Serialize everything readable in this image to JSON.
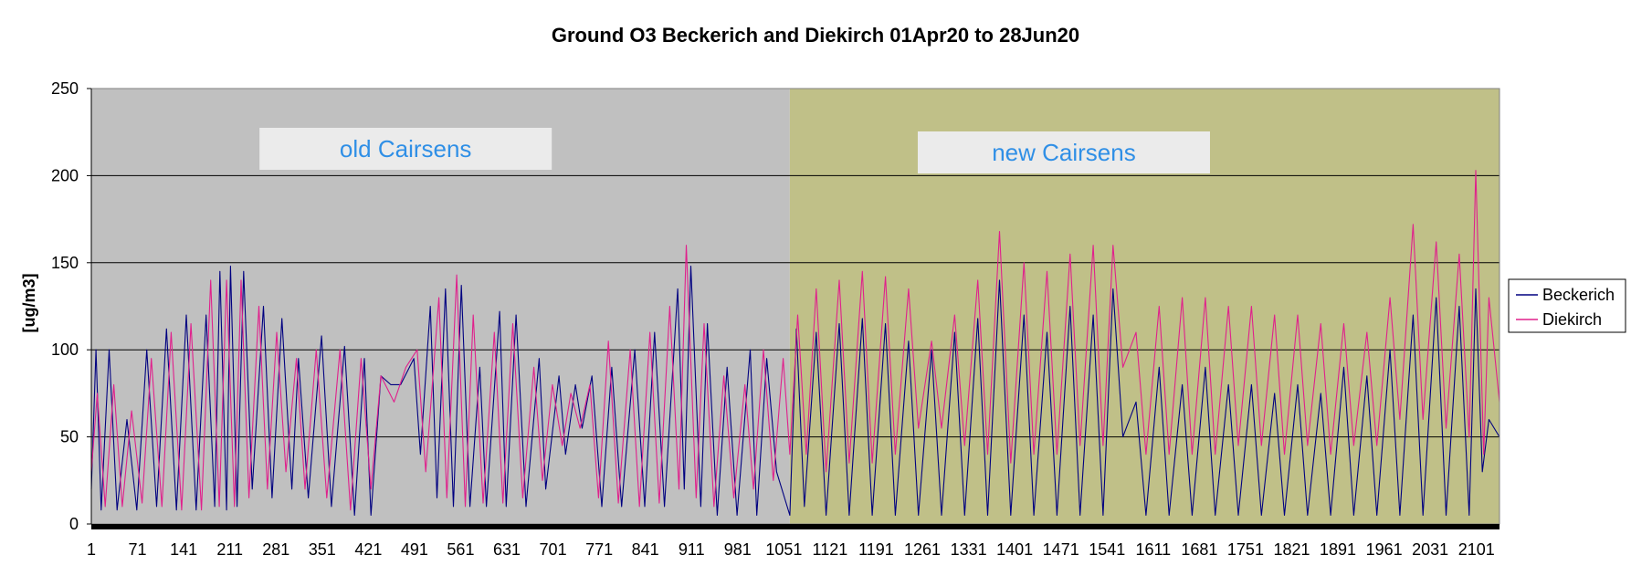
{
  "chart_data": {
    "type": "line",
    "title": "Ground O3 Beckerich and Diekirch 01Apr20 to 28Jun20",
    "ylabel": "[ug/m3]",
    "xlabel": "",
    "ylim": [
      0,
      250
    ],
    "xlim": [
      1,
      2136
    ],
    "yticks": [
      "0",
      "50",
      "100",
      "150",
      "200",
      "250"
    ],
    "xticks": [
      "1",
      "71",
      "141",
      "211",
      "281",
      "351",
      "421",
      "491",
      "561",
      "631",
      "701",
      "771",
      "841",
      "911",
      "981",
      "1051",
      "1121",
      "1191",
      "1261",
      "1331",
      "1401",
      "1471",
      "1541",
      "1611",
      "1681",
      "1751",
      "1821",
      "1891",
      "1961",
      "2031",
      "2101"
    ],
    "grid": true,
    "legend_position": "right",
    "regions": [
      {
        "label": "old Cairsens",
        "x_start": 1,
        "x_end": 1060,
        "color": "#c0c0c0"
      },
      {
        "label": "new Cairsens",
        "x_start": 1060,
        "x_end": 2136,
        "color": "#c0c088"
      }
    ],
    "series": [
      {
        "name": "Beckerich",
        "color": "#000080",
        "points": [
          [
            1,
            20
          ],
          [
            8,
            100
          ],
          [
            16,
            8
          ],
          [
            28,
            100
          ],
          [
            40,
            8
          ],
          [
            55,
            60
          ],
          [
            70,
            8
          ],
          [
            85,
            100
          ],
          [
            100,
            10
          ],
          [
            115,
            112
          ],
          [
            130,
            8
          ],
          [
            145,
            120
          ],
          [
            160,
            8
          ],
          [
            175,
            120
          ],
          [
            188,
            10
          ],
          [
            196,
            145
          ],
          [
            206,
            8
          ],
          [
            212,
            148
          ],
          [
            222,
            10
          ],
          [
            232,
            145
          ],
          [
            245,
            20
          ],
          [
            262,
            125
          ],
          [
            275,
            15
          ],
          [
            290,
            118
          ],
          [
            305,
            20
          ],
          [
            315,
            95
          ],
          [
            330,
            15
          ],
          [
            350,
            108
          ],
          [
            365,
            10
          ],
          [
            385,
            102
          ],
          [
            400,
            5
          ],
          [
            415,
            95
          ],
          [
            425,
            5
          ],
          [
            440,
            85
          ],
          [
            455,
            80
          ],
          [
            470,
            80
          ],
          [
            490,
            95
          ],
          [
            500,
            40
          ],
          [
            515,
            125
          ],
          [
            525,
            15
          ],
          [
            538,
            135
          ],
          [
            550,
            10
          ],
          [
            562,
            137
          ],
          [
            575,
            10
          ],
          [
            590,
            90
          ],
          [
            600,
            10
          ],
          [
            620,
            122
          ],
          [
            630,
            10
          ],
          [
            645,
            120
          ],
          [
            660,
            10
          ],
          [
            680,
            95
          ],
          [
            690,
            20
          ],
          [
            710,
            85
          ],
          [
            720,
            40
          ],
          [
            735,
            80
          ],
          [
            745,
            55
          ],
          [
            760,
            85
          ],
          [
            775,
            10
          ],
          [
            790,
            90
          ],
          [
            805,
            10
          ],
          [
            825,
            100
          ],
          [
            840,
            10
          ],
          [
            855,
            110
          ],
          [
            870,
            10
          ],
          [
            890,
            135
          ],
          [
            900,
            20
          ],
          [
            910,
            148
          ],
          [
            925,
            10
          ],
          [
            935,
            115
          ],
          [
            950,
            5
          ],
          [
            965,
            90
          ],
          [
            980,
            5
          ],
          [
            1000,
            100
          ],
          [
            1010,
            5
          ],
          [
            1025,
            95
          ],
          [
            1040,
            30
          ],
          [
            1060,
            5
          ],
          [
            1070,
            112
          ],
          [
            1082,
            10
          ],
          [
            1100,
            110
          ],
          [
            1115,
            5
          ],
          [
            1135,
            115
          ],
          [
            1150,
            5
          ],
          [
            1170,
            118
          ],
          [
            1185,
            5
          ],
          [
            1205,
            115
          ],
          [
            1220,
            5
          ],
          [
            1240,
            105
          ],
          [
            1255,
            5
          ],
          [
            1275,
            100
          ],
          [
            1290,
            5
          ],
          [
            1310,
            110
          ],
          [
            1325,
            5
          ],
          [
            1345,
            118
          ],
          [
            1360,
            5
          ],
          [
            1378,
            140
          ],
          [
            1395,
            5
          ],
          [
            1415,
            120
          ],
          [
            1430,
            5
          ],
          [
            1450,
            110
          ],
          [
            1465,
            5
          ],
          [
            1485,
            125
          ],
          [
            1500,
            5
          ],
          [
            1520,
            120
          ],
          [
            1535,
            5
          ],
          [
            1550,
            135
          ],
          [
            1565,
            50
          ],
          [
            1585,
            70
          ],
          [
            1600,
            5
          ],
          [
            1620,
            90
          ],
          [
            1635,
            5
          ],
          [
            1655,
            80
          ],
          [
            1670,
            5
          ],
          [
            1690,
            90
          ],
          [
            1705,
            5
          ],
          [
            1725,
            80
          ],
          [
            1740,
            5
          ],
          [
            1760,
            80
          ],
          [
            1775,
            5
          ],
          [
            1795,
            75
          ],
          [
            1810,
            5
          ],
          [
            1830,
            80
          ],
          [
            1845,
            5
          ],
          [
            1865,
            75
          ],
          [
            1880,
            5
          ],
          [
            1900,
            90
          ],
          [
            1915,
            5
          ],
          [
            1935,
            85
          ],
          [
            1950,
            5
          ],
          [
            1970,
            100
          ],
          [
            1985,
            5
          ],
          [
            2005,
            120
          ],
          [
            2020,
            5
          ],
          [
            2040,
            130
          ],
          [
            2055,
            5
          ],
          [
            2075,
            125
          ],
          [
            2090,
            5
          ],
          [
            2100,
            135
          ],
          [
            2110,
            30
          ],
          [
            2120,
            60
          ],
          [
            2136,
            50
          ]
        ]
      },
      {
        "name": "Diekirch",
        "color": "#e0208c",
        "points": [
          [
            1,
            30
          ],
          [
            10,
            75
          ],
          [
            22,
            10
          ],
          [
            35,
            80
          ],
          [
            48,
            10
          ],
          [
            62,
            65
          ],
          [
            78,
            12
          ],
          [
            92,
            95
          ],
          [
            108,
            10
          ],
          [
            122,
            110
          ],
          [
            138,
            8
          ],
          [
            152,
            115
          ],
          [
            168,
            8
          ],
          [
            182,
            140
          ],
          [
            195,
            10
          ],
          [
            206,
            140
          ],
          [
            218,
            10
          ],
          [
            228,
            140
          ],
          [
            240,
            15
          ],
          [
            255,
            125
          ],
          [
            268,
            20
          ],
          [
            282,
            110
          ],
          [
            296,
            30
          ],
          [
            312,
            95
          ],
          [
            325,
            20
          ],
          [
            342,
            100
          ],
          [
            358,
            15
          ],
          [
            378,
            100
          ],
          [
            394,
            8
          ],
          [
            410,
            95
          ],
          [
            425,
            20
          ],
          [
            440,
            85
          ],
          [
            460,
            70
          ],
          [
            478,
            90
          ],
          [
            495,
            100
          ],
          [
            508,
            30
          ],
          [
            528,
            130
          ],
          [
            540,
            15
          ],
          [
            555,
            143
          ],
          [
            568,
            10
          ],
          [
            580,
            120
          ],
          [
            595,
            12
          ],
          [
            612,
            110
          ],
          [
            625,
            12
          ],
          [
            640,
            115
          ],
          [
            655,
            15
          ],
          [
            672,
            90
          ],
          [
            685,
            25
          ],
          [
            700,
            80
          ],
          [
            715,
            45
          ],
          [
            728,
            75
          ],
          [
            742,
            55
          ],
          [
            757,
            80
          ],
          [
            770,
            15
          ],
          [
            785,
            105
          ],
          [
            800,
            12
          ],
          [
            818,
            100
          ],
          [
            832,
            10
          ],
          [
            848,
            110
          ],
          [
            862,
            12
          ],
          [
            878,
            125
          ],
          [
            892,
            20
          ],
          [
            903,
            160
          ],
          [
            918,
            15
          ],
          [
            930,
            115
          ],
          [
            945,
            10
          ],
          [
            960,
            85
          ],
          [
            975,
            15
          ],
          [
            992,
            80
          ],
          [
            1005,
            20
          ],
          [
            1020,
            100
          ],
          [
            1035,
            25
          ],
          [
            1050,
            95
          ],
          [
            1060,
            40
          ],
          [
            1072,
            120
          ],
          [
            1085,
            40
          ],
          [
            1100,
            135
          ],
          [
            1115,
            30
          ],
          [
            1135,
            140
          ],
          [
            1150,
            35
          ],
          [
            1170,
            145
          ],
          [
            1185,
            35
          ],
          [
            1205,
            142
          ],
          [
            1220,
            40
          ],
          [
            1240,
            135
          ],
          [
            1255,
            55
          ],
          [
            1275,
            105
          ],
          [
            1290,
            55
          ],
          [
            1310,
            120
          ],
          [
            1325,
            45
          ],
          [
            1345,
            140
          ],
          [
            1360,
            40
          ],
          [
            1378,
            168
          ],
          [
            1395,
            35
          ],
          [
            1415,
            150
          ],
          [
            1430,
            40
          ],
          [
            1450,
            145
          ],
          [
            1465,
            40
          ],
          [
            1485,
            155
          ],
          [
            1500,
            45
          ],
          [
            1520,
            160
          ],
          [
            1535,
            45
          ],
          [
            1550,
            160
          ],
          [
            1565,
            90
          ],
          [
            1585,
            110
          ],
          [
            1600,
            40
          ],
          [
            1620,
            125
          ],
          [
            1635,
            40
          ],
          [
            1655,
            130
          ],
          [
            1670,
            40
          ],
          [
            1690,
            130
          ],
          [
            1705,
            40
          ],
          [
            1725,
            125
          ],
          [
            1740,
            45
          ],
          [
            1760,
            125
          ],
          [
            1775,
            45
          ],
          [
            1795,
            120
          ],
          [
            1810,
            40
          ],
          [
            1830,
            120
          ],
          [
            1845,
            45
          ],
          [
            1865,
            115
          ],
          [
            1880,
            40
          ],
          [
            1900,
            115
          ],
          [
            1915,
            45
          ],
          [
            1935,
            110
          ],
          [
            1950,
            45
          ],
          [
            1970,
            130
          ],
          [
            1985,
            60
          ],
          [
            2005,
            172
          ],
          [
            2020,
            60
          ],
          [
            2040,
            162
          ],
          [
            2055,
            55
          ],
          [
            2075,
            155
          ],
          [
            2090,
            50
          ],
          [
            2100,
            203
          ],
          [
            2112,
            40
          ],
          [
            2120,
            130
          ],
          [
            2136,
            70
          ]
        ]
      }
    ]
  }
}
